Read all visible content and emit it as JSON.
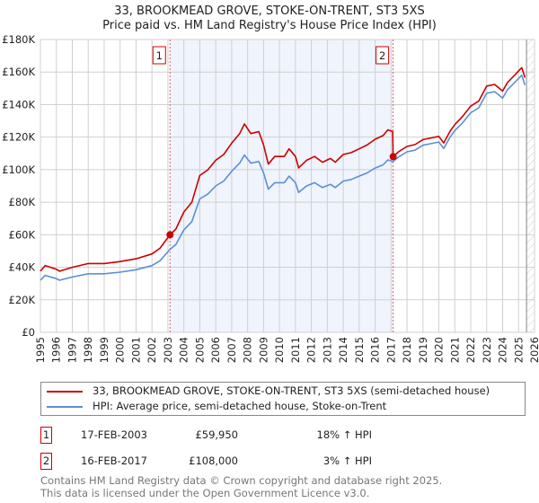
{
  "chart_data": {
    "type": "line",
    "title": "33, BROOKMEAD GROVE, STOKE-ON-TRENT, ST3 5XS",
    "subtitle": "Price paid vs. HM Land Registry's House Price Index (HPI)",
    "xlim": [
      1995,
      2026
    ],
    "ylim": [
      0,
      180000
    ],
    "y_ticks": [
      0,
      20000,
      40000,
      60000,
      80000,
      100000,
      120000,
      140000,
      160000,
      180000
    ],
    "y_tick_labels": [
      "£0",
      "£20K",
      "£40K",
      "£60K",
      "£80K",
      "£100K",
      "£120K",
      "£140K",
      "£160K",
      "£180K"
    ],
    "x_ticks": [
      1995,
      1996,
      1997,
      1998,
      1999,
      2000,
      2001,
      2002,
      2003,
      2004,
      2005,
      2006,
      2007,
      2008,
      2009,
      2010,
      2011,
      2012,
      2013,
      2014,
      2015,
      2016,
      2017,
      2018,
      2019,
      2020,
      2021,
      2022,
      2023,
      2024,
      2025,
      2026
    ],
    "grid": true,
    "x": [
      1995.0,
      1995.3,
      1996.0,
      1996.2,
      1997.0,
      1998.0,
      1999.0,
      2000.0,
      2001.0,
      2002.0,
      2002.5,
      2003.13,
      2003.5,
      2004.0,
      2004.5,
      2005.0,
      2005.5,
      2006.0,
      2006.5,
      2007.0,
      2007.5,
      2007.8,
      2008.2,
      2008.7,
      2009.0,
      2009.3,
      2009.7,
      2010.3,
      2010.6,
      2011.0,
      2011.2,
      2011.7,
      2012.2,
      2012.7,
      2013.2,
      2013.5,
      2014.0,
      2014.5,
      2015.0,
      2015.5,
      2016.0,
      2016.5,
      2016.8,
      2017.1,
      2017.13,
      2017.5,
      2018.0,
      2018.5,
      2019.0,
      2019.5,
      2020.0,
      2020.3,
      2020.7,
      2021.0,
      2021.5,
      2022.0,
      2022.5,
      2023.0,
      2023.5,
      2024.0,
      2024.3,
      2024.8,
      2025.2,
      2025.4
    ],
    "series": [
      {
        "name": "33, BROOKMEAD GROVE, STOKE-ON-TRENT, ST3 5XS (semi-detached house)",
        "color": "#cc0000",
        "values": [
          37600,
          41100,
          38800,
          37600,
          40000,
          42300,
          42300,
          43500,
          45200,
          48200,
          51700,
          59950,
          63500,
          74000,
          79900,
          96400,
          99900,
          105800,
          109300,
          116300,
          122200,
          128100,
          122200,
          123400,
          115200,
          103400,
          108100,
          108100,
          112800,
          108100,
          101100,
          105800,
          108100,
          104600,
          106900,
          104600,
          109300,
          110500,
          112800,
          115200,
          118700,
          121000,
          124500,
          123400,
          108000,
          111200,
          114300,
          115400,
          118500,
          119500,
          120500,
          116400,
          123600,
          127700,
          132900,
          139100,
          142100,
          151400,
          152400,
          148300,
          153500,
          158600,
          162700,
          156600
        ]
      },
      {
        "name": "HPI: Average price, semi-detached house, Stoke-on-Trent",
        "color": "#5b8fd6",
        "values": [
          32000,
          35000,
          33000,
          32000,
          34000,
          36000,
          36000,
          37000,
          38500,
          41000,
          44000,
          51000,
          54000,
          63000,
          68000,
          82000,
          85000,
          90000,
          93000,
          99000,
          104000,
          109000,
          104000,
          105000,
          98000,
          88000,
          92000,
          92000,
          96000,
          92000,
          86000,
          90000,
          92000,
          89000,
          91000,
          89000,
          93000,
          94000,
          96000,
          98000,
          101000,
          103000,
          106000,
          105000,
          105000,
          108000,
          111000,
          112000,
          115000,
          116000,
          117000,
          113000,
          120000,
          124000,
          129000,
          135000,
          138000,
          147000,
          148000,
          144000,
          149000,
          154000,
          158000,
          152000
        ]
      }
    ],
    "sales": [
      {
        "label": "1",
        "x": 2003.13,
        "value": 59950,
        "date": "17-FEB-2003",
        "price": "£59,950",
        "hpi": "18% ↑ HPI"
      },
      {
        "label": "2",
        "x": 2017.13,
        "value": 108000,
        "date": "16-FEB-2017",
        "price": "£108,000",
        "hpi": "3% ↑ HPI"
      }
    ],
    "shaded_range": [
      2003.13,
      2017.13
    ],
    "forecast_hatch_from": 2025.5,
    "legend_placement": "below"
  },
  "footer": {
    "line1": "Contains HM Land Registry data © Crown copyright and database right 2025.",
    "line2": "This data is licensed under the Open Government Licence v3.0."
  }
}
